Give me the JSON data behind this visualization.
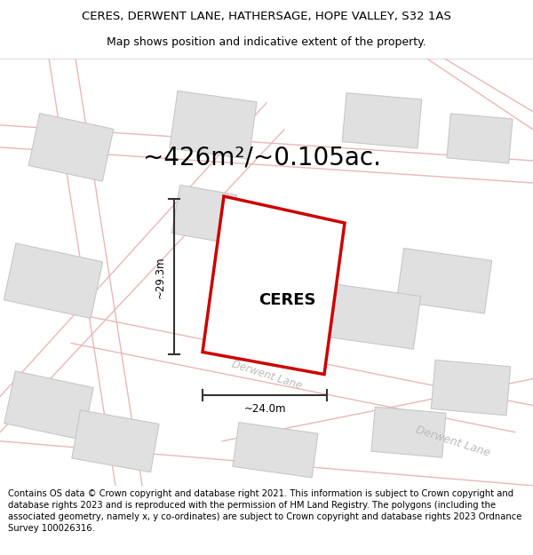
{
  "title_line1": "CERES, DERWENT LANE, HATHERSAGE, HOPE VALLEY, S32 1AS",
  "title_line2": "Map shows position and indicative extent of the property.",
  "area_text": "~426m²/~0.105ac.",
  "property_label": "CERES",
  "dim_height": "~29.3m",
  "dim_width": "~24.0m",
  "road_label1": "Derwent Lane",
  "road_label2": "Derwent Lane",
  "footer_text": "Contains OS data © Crown copyright and database right 2021. This information is subject to Crown copyright and database rights 2023 and is reproduced with the permission of HM Land Registry. The polygons (including the associated geometry, namely x, y co-ordinates) are subject to Crown copyright and database rights 2023 Ordnance Survey 100026316.",
  "map_bg": "#faf8f8",
  "road_fill": "#f5ecec",
  "road_line": "#e8b8b8",
  "bld_fill": "#e0e0e0",
  "bld_edge": "#c8c8c8",
  "prop_fill": "#ffffff",
  "prop_edge": "#cc0000",
  "dim_col": "#333333",
  "road_txt": "#cccccc",
  "title_fs": 9.5,
  "area_fs": 20,
  "prop_fs": 13,
  "footer_fs": 7.2,
  "dim_fs": 8.5
}
